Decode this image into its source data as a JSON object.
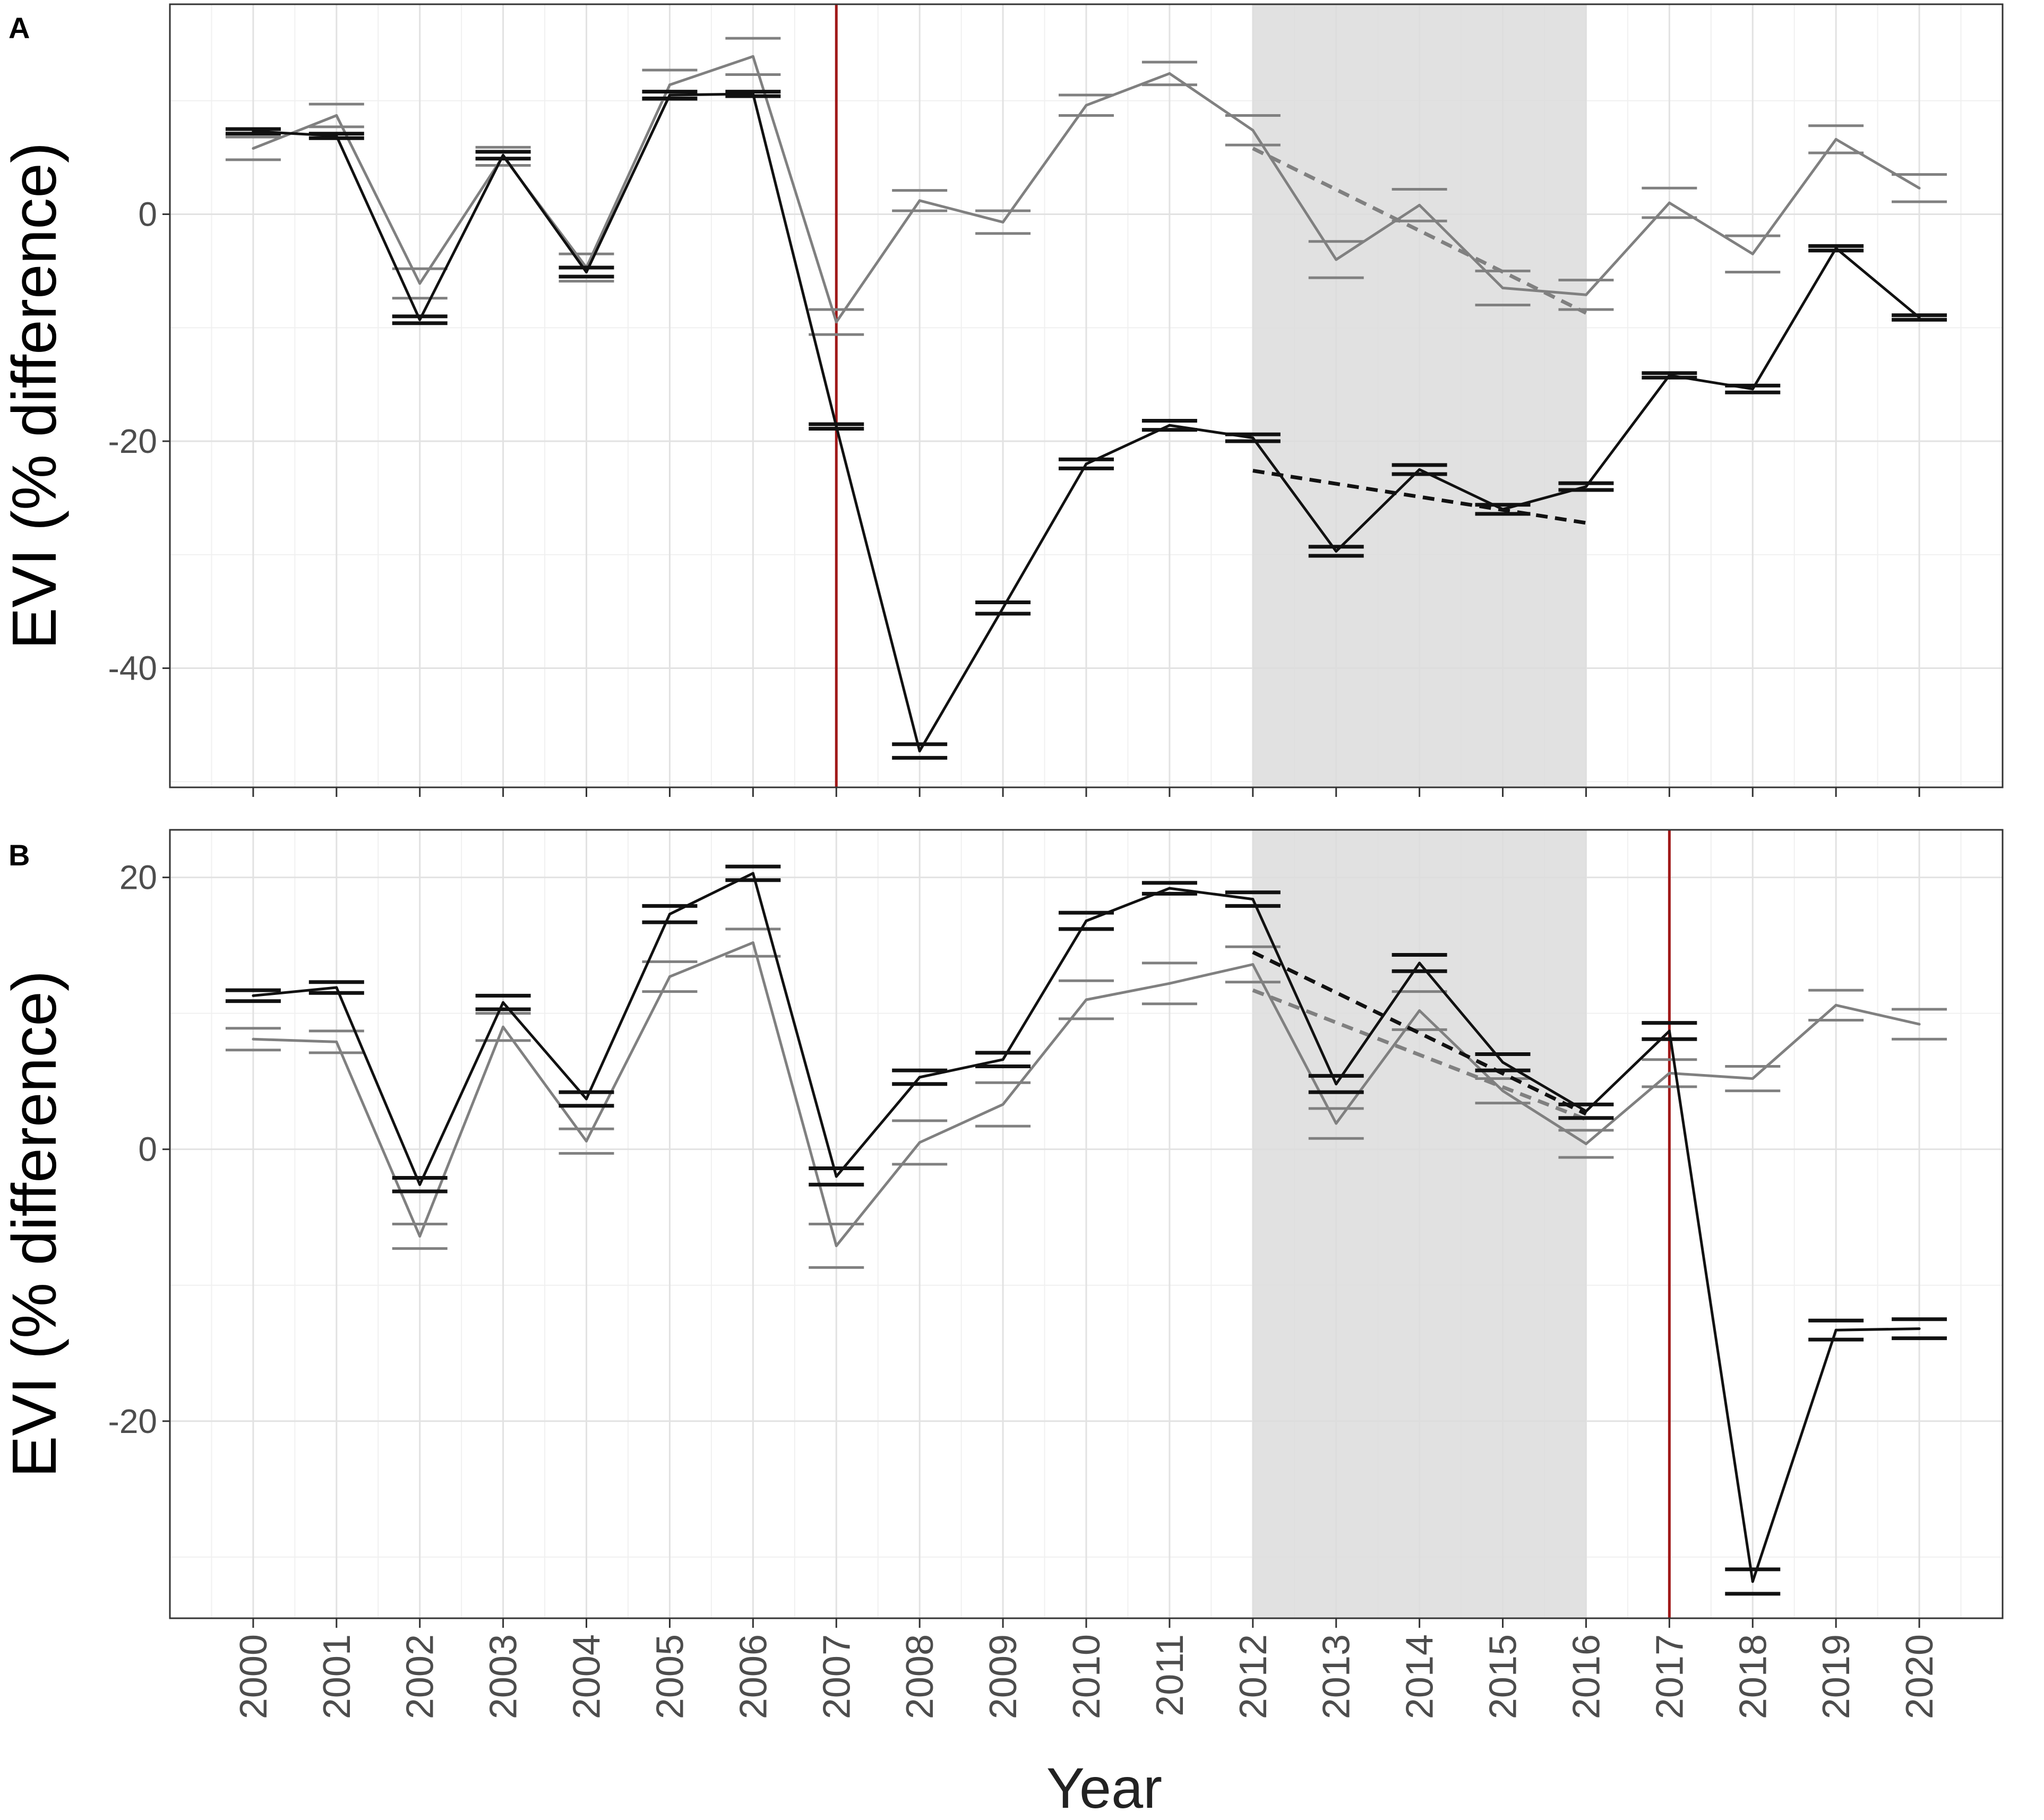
{
  "figure": {
    "x_axis_title": "Year",
    "colors": {
      "series_black": "#111111",
      "series_grey": "#808080",
      "event_line": "#a01818",
      "shade": "#dcdcdc",
      "grid_major": "#e2e2e2",
      "grid_minor": "#f0f0f0",
      "frame": "#333333"
    }
  },
  "chart_data": [
    {
      "panel": "A",
      "type": "line",
      "ylabel": "EVI (% difference)",
      "xlabel": "Year",
      "x": [
        2000,
        2001,
        2002,
        2003,
        2004,
        2005,
        2006,
        2007,
        2008,
        2009,
        2010,
        2011,
        2012,
        2013,
        2014,
        2015,
        2016,
        2017,
        2018,
        2019,
        2020
      ],
      "x_tick_labels": [
        "2000",
        "2001",
        "2002",
        "2003",
        "2004",
        "2005",
        "2006",
        "2007",
        "2008",
        "2009",
        "2010",
        "2011",
        "2012",
        "2013",
        "2014",
        "2015",
        "2016",
        "2017",
        "2018",
        "2019",
        "2020"
      ],
      "ylim": [
        -50.5,
        18.5
      ],
      "y_ticks": [
        -40,
        -20,
        0
      ],
      "y_tick_labels": [
        "-40",
        "-20",
        "0"
      ],
      "grid": true,
      "shaded_range": [
        2012,
        2016
      ],
      "vertical_line": 2007,
      "series": [
        {
          "color": "#111111",
          "values": [
            7.3,
            6.9,
            -9.3,
            5.2,
            -5.1,
            10.5,
            10.6,
            -18.7,
            -47.3,
            -34.7,
            -22.0,
            -18.6,
            -19.7,
            -29.7,
            -22.5,
            -26.0,
            -24.0,
            -14.2,
            -15.4,
            -3.0,
            -9.1
          ],
          "error": [
            0.2,
            0.2,
            0.3,
            0.3,
            0.4,
            0.3,
            0.2,
            0.2,
            0.6,
            0.5,
            0.4,
            0.4,
            0.3,
            0.4,
            0.4,
            0.4,
            0.3,
            0.2,
            0.3,
            0.2,
            0.2
          ],
          "trend": {
            "x": [
              2012,
              2016
            ],
            "y": [
              -22.6,
              -27.2
            ]
          }
        },
        {
          "color": "#808080",
          "values": [
            5.8,
            8.7,
            -6.1,
            5.1,
            -4.7,
            11.4,
            13.9,
            -9.5,
            1.2,
            -0.7,
            9.6,
            12.4,
            7.4,
            -4.0,
            0.8,
            -6.5,
            -7.1,
            1.0,
            -3.5,
            6.6,
            2.3
          ],
          "error": [
            1.0,
            1.0,
            1.3,
            0.8,
            1.2,
            1.3,
            1.6,
            1.1,
            0.9,
            1.0,
            0.9,
            1.0,
            1.3,
            1.6,
            1.4,
            1.5,
            1.3,
            1.3,
            1.6,
            1.2,
            1.2
          ],
          "trend": {
            "x": [
              2012,
              2016
            ],
            "y": [
              5.8,
              -8.7
            ]
          }
        }
      ]
    },
    {
      "panel": "B",
      "type": "line",
      "ylabel": "EVI (% difference)",
      "xlabel": "Year",
      "x": [
        2000,
        2001,
        2002,
        2003,
        2004,
        2005,
        2006,
        2007,
        2008,
        2009,
        2010,
        2011,
        2012,
        2013,
        2014,
        2015,
        2016,
        2017,
        2018,
        2019,
        2020
      ],
      "x_tick_labels": [
        "2000",
        "2001",
        "2002",
        "2003",
        "2004",
        "2005",
        "2006",
        "2007",
        "2008",
        "2009",
        "2010",
        "2011",
        "2012",
        "2013",
        "2014",
        "2015",
        "2016",
        "2017",
        "2018",
        "2019",
        "2020"
      ],
      "ylim": [
        -34.5,
        23.5
      ],
      "y_ticks": [
        -20,
        0,
        20
      ],
      "y_tick_labels": [
        "-20",
        "0",
        "20"
      ],
      "grid": true,
      "shaded_range": [
        2012,
        2016
      ],
      "vertical_line": 2017,
      "series": [
        {
          "color": "#111111",
          "values": [
            11.3,
            11.9,
            -2.6,
            10.8,
            3.7,
            17.3,
            20.3,
            -2.0,
            5.3,
            6.6,
            16.8,
            19.2,
            18.4,
            4.8,
            13.7,
            6.4,
            2.8,
            8.7,
            -31.8,
            -13.3,
            -13.2
          ],
          "error": [
            0.4,
            0.4,
            0.5,
            0.5,
            0.5,
            0.6,
            0.5,
            0.6,
            0.5,
            0.5,
            0.6,
            0.4,
            0.5,
            0.6,
            0.6,
            0.6,
            0.5,
            0.6,
            0.9,
            0.7,
            0.7
          ],
          "trend": {
            "x": [
              2012,
              2016
            ],
            "y": [
              14.5,
              2.6
            ]
          }
        },
        {
          "color": "#808080",
          "values": [
            8.1,
            7.9,
            -6.4,
            9.0,
            0.6,
            12.7,
            15.2,
            -7.1,
            0.5,
            3.3,
            11.0,
            12.2,
            13.6,
            1.9,
            10.2,
            4.3,
            0.4,
            5.6,
            5.2,
            10.6,
            9.2
          ],
          "error": [
            0.8,
            0.8,
            0.9,
            1.0,
            0.9,
            1.1,
            1.0,
            1.6,
            1.6,
            1.6,
            1.4,
            1.5,
            1.3,
            1.1,
            1.4,
            0.9,
            1.0,
            1.0,
            0.9,
            1.1,
            1.1
          ],
          "trend": {
            "x": [
              2012,
              2016
            ],
            "y": [
              11.7,
              2.2
            ]
          }
        }
      ]
    }
  ]
}
